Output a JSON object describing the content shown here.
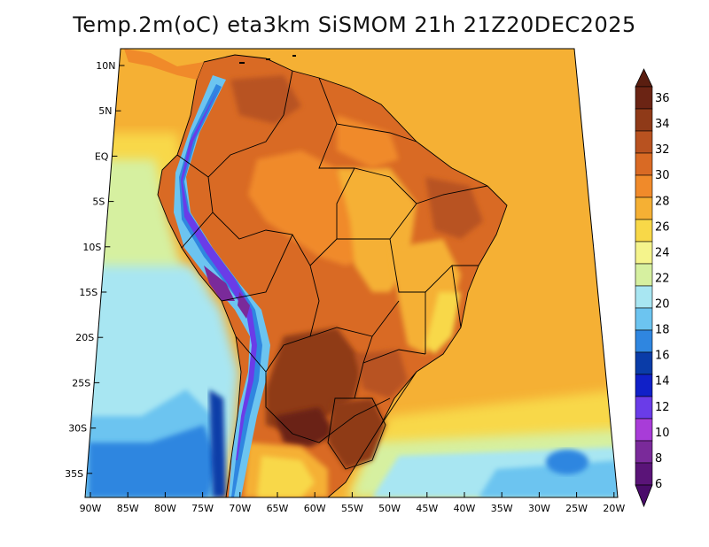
{
  "title": "Temp.2m(oC) eta3km SiSMOM 21h 21Z20DEC2025",
  "axes": {
    "lon_labels": [
      "90W",
      "85W",
      "80W",
      "75W",
      "70W",
      "65W",
      "60W",
      "55W",
      "50W",
      "45W",
      "40W",
      "35W",
      "30W",
      "25W",
      "20W"
    ],
    "lat_labels": [
      "10N",
      "5N",
      "EQ",
      "5S",
      "10S",
      "15S",
      "20S",
      "25S",
      "30S",
      "35S"
    ]
  },
  "colorbar": {
    "labels": [
      "36",
      "34",
      "32",
      "30",
      "28",
      "26",
      "24",
      "22",
      "20",
      "18",
      "16",
      "14",
      "12",
      "10",
      "8",
      "6"
    ],
    "colors": [
      "#6b2414",
      "#8f3a18",
      "#b85220",
      "#d96a24",
      "#f08a2a",
      "#f5b034",
      "#f8d848",
      "#f5f48c",
      "#d6f0a0",
      "#a8e6f2",
      "#6cc4f0",
      "#2f86e0",
      "#0a3ca8",
      "#1020c8",
      "#6a3ce8",
      "#a83cd8",
      "#7a2a9a",
      "#5a1478"
    ],
    "top_arrow_color": "#5a1e10",
    "bottom_arrow_color": "#4a0c6a"
  },
  "chart_data": {
    "type": "heatmap",
    "title": "Temp.2m(oC) eta3km SiSMOM 21h 21Z20DEC2025",
    "x_ticks": [
      "90W",
      "85W",
      "80W",
      "75W",
      "70W",
      "65W",
      "60W",
      "55W",
      "50W",
      "45W",
      "40W",
      "35W",
      "30W",
      "25W",
      "20W"
    ],
    "y_ticks": [
      "10N",
      "5N",
      "EQ",
      "5S",
      "10S",
      "15S",
      "20S",
      "25S",
      "30S",
      "35S"
    ],
    "lon_range": [
      -90,
      -20
    ],
    "lat_range": [
      -37,
      11
    ],
    "color_levels": [
      6,
      8,
      10,
      12,
      14,
      16,
      18,
      20,
      22,
      24,
      26,
      28,
      30,
      32,
      34,
      36
    ]
  }
}
